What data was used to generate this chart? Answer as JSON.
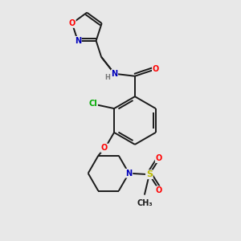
{
  "background_color": "#e8e8e8",
  "bond_color": "#1a1a1a",
  "atom_colors": {
    "O": "#ff0000",
    "N": "#0000bb",
    "S": "#bbbb00",
    "Cl": "#00aa00",
    "H": "#777777",
    "C": "#1a1a1a"
  },
  "font_size": 7.0,
  "line_width": 1.4
}
